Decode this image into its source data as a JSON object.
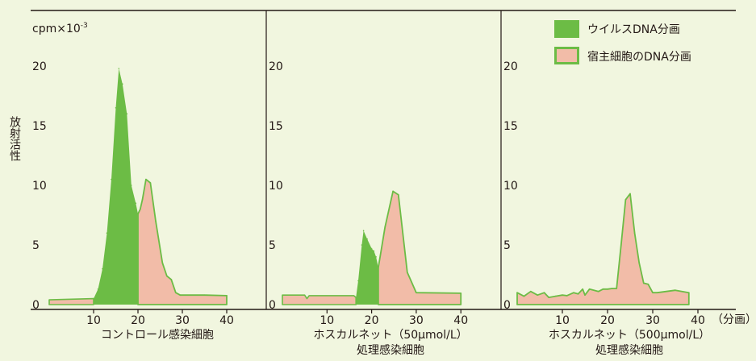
{
  "colors": {
    "background": "#f1f6df",
    "viral_fill": "#6cbc45",
    "host_fill": "#f2bca8",
    "host_outline": "#6cbc45",
    "axis": "#231815"
  },
  "figure": {
    "ylabel": "放射活性",
    "y_unit": "cpm×10",
    "y_unit_exp": "-3",
    "x_unit": "（分画）"
  },
  "legend": {
    "viral_label": "ウイルスDNA分画",
    "host_label": "宿主細胞のDNA分画",
    "placement": "top-right"
  },
  "chart_data": [
    {
      "type": "area",
      "title_lines": [
        "コントロール感染細胞"
      ],
      "xlim": [
        0,
        42
      ],
      "ylim": [
        0,
        23
      ],
      "x_ticks": [
        "10",
        "20",
        "30",
        "40"
      ],
      "y_ticks": [
        "0",
        "5",
        "10",
        "15",
        "20"
      ],
      "series": [
        {
          "name": "ウイルスDNA分画",
          "points": [
            [
              10,
              0.5
            ],
            [
              11,
              1.3
            ],
            [
              12,
              3.0
            ],
            [
              13,
              6.0
            ],
            [
              14,
              10.5
            ],
            [
              15,
              16.5
            ],
            [
              15.7,
              19.8
            ],
            [
              16.5,
              18.5
            ],
            [
              17.5,
              16.0
            ],
            [
              18.5,
              10.0
            ],
            [
              19.5,
              8.5
            ],
            [
              20,
              7.6
            ]
          ]
        },
        {
          "name": "宿主細胞のDNA分画",
          "points": [
            [
              20,
              7.6
            ],
            [
              20.5,
              8.0
            ],
            [
              21,
              8.8
            ],
            [
              21.8,
              10.5
            ],
            [
              22.8,
              10.2
            ],
            [
              24,
              7.0
            ],
            [
              25.5,
              3.5
            ],
            [
              26.5,
              2.4
            ],
            [
              27.5,
              2.1
            ],
            [
              28.5,
              1.0
            ],
            [
              29.5,
              0.8
            ],
            [
              35,
              0.8
            ],
            [
              40,
              0.75
            ]
          ]
        }
      ],
      "baseline_points": [
        [
          0,
          0.4
        ],
        [
          10,
          0.5
        ]
      ]
    },
    {
      "type": "area",
      "title_lines": [
        "ホスカルネット（50μmol/L）",
        "処理感染細胞"
      ],
      "xlim": [
        0,
        42
      ],
      "ylim": [
        0,
        23
      ],
      "x_ticks": [
        "10",
        "20",
        "30",
        "40"
      ],
      "y_ticks": [
        "0",
        "5",
        "10",
        "15",
        "20"
      ],
      "series": [
        {
          "name": "ウイルスDNA分画",
          "points": [
            [
              16.5,
              0.6
            ],
            [
              17,
              2.0
            ],
            [
              17.8,
              5.0
            ],
            [
              18.2,
              6.2
            ],
            [
              19,
              5.5
            ],
            [
              20,
              4.7
            ],
            [
              20.5,
              4.5
            ],
            [
              21,
              4.0
            ],
            [
              21.5,
              3.1
            ]
          ]
        },
        {
          "name": "宿主細胞のDNA分画",
          "points": [
            [
              21.5,
              3.1
            ],
            [
              23,
              6.5
            ],
            [
              24.8,
              9.5
            ],
            [
              26,
              9.2
            ],
            [
              28,
              2.7
            ],
            [
              30,
              1.0
            ],
            [
              40,
              0.95
            ]
          ]
        }
      ],
      "baseline_points": [
        [
          0,
          0.8
        ],
        [
          5,
          0.8
        ],
        [
          5.5,
          0.5
        ],
        [
          6,
          0.75
        ],
        [
          16,
          0.75
        ],
        [
          16.5,
          0.6
        ]
      ]
    },
    {
      "type": "area",
      "title_lines": [
        "ホスカルネット（500μmol/L）",
        "処理感染細胞"
      ],
      "xlim": [
        0,
        42
      ],
      "ylim": [
        0,
        23
      ],
      "x_ticks": [
        "10",
        "20",
        "30",
        "40"
      ],
      "y_ticks": [
        "0",
        "5",
        "10",
        "15",
        "20"
      ],
      "series": [
        {
          "name": "宿主細胞のDNA分画",
          "points": [
            [
              0,
              1.0
            ],
            [
              1.5,
              0.7
            ],
            [
              3,
              1.1
            ],
            [
              4.5,
              0.8
            ],
            [
              6,
              1.0
            ],
            [
              7,
              0.6
            ],
            [
              8.5,
              0.7
            ],
            [
              10,
              0.8
            ],
            [
              11,
              0.75
            ],
            [
              12.5,
              1.0
            ],
            [
              13.5,
              0.9
            ],
            [
              14.5,
              1.3
            ],
            [
              15,
              0.8
            ],
            [
              16,
              1.3
            ],
            [
              17,
              1.2
            ],
            [
              18,
              1.1
            ],
            [
              19,
              1.3
            ],
            [
              20,
              1.3
            ],
            [
              21,
              1.35
            ],
            [
              22,
              1.35
            ],
            [
              23,
              5.0
            ],
            [
              24,
              8.8
            ],
            [
              25,
              9.3
            ],
            [
              26,
              6.0
            ],
            [
              27,
              3.5
            ],
            [
              28,
              1.8
            ],
            [
              29,
              1.7
            ],
            [
              30,
              1.0
            ],
            [
              31,
              1.0
            ],
            [
              35,
              1.2
            ],
            [
              38,
              1.0
            ]
          ]
        }
      ],
      "baseline_points": []
    }
  ]
}
